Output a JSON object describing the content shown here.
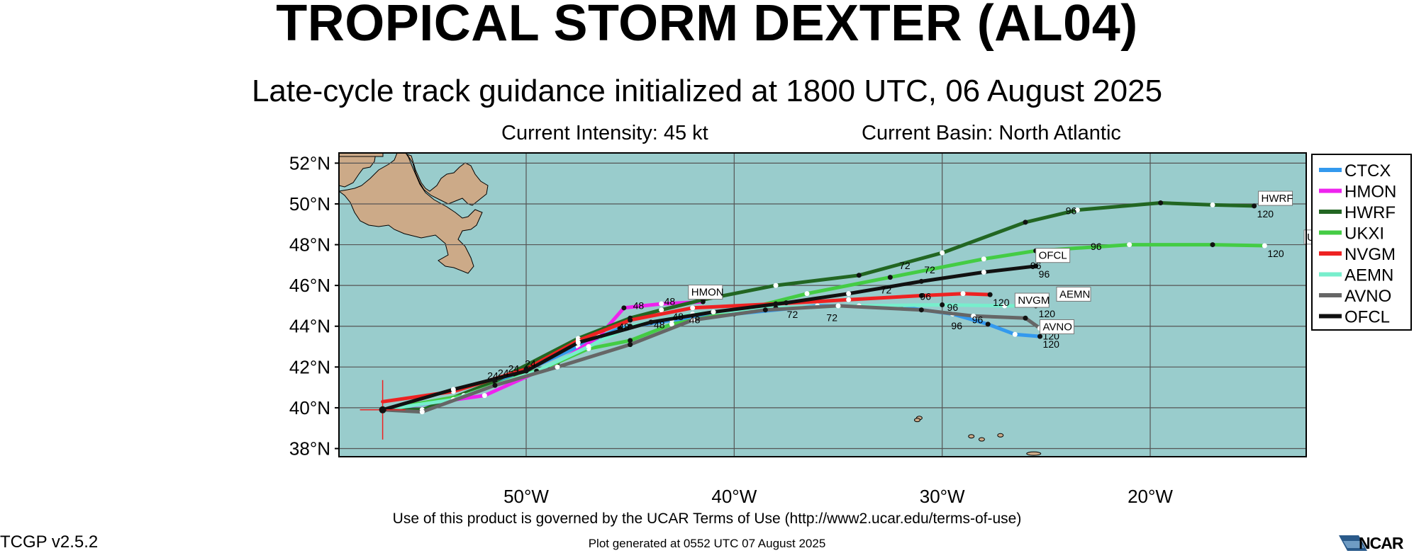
{
  "header": {
    "title": "TROPICAL STORM DEXTER (AL04)",
    "subtitle": "Late-cycle track guidance initialized at 1800 UTC, 06 August 2025",
    "intensity": "Current Intensity: 45 kt",
    "basin": "Current Basin: North Atlantic"
  },
  "footer": {
    "terms": "Use of this product is governed by the UCAR Terms of Use (http://www2.ucar.edu/terms-of-use)",
    "version": "TCGP v2.5.2",
    "generated": "Plot generated at 0552 UTC   07 August 2025",
    "logo_text": "NCAR"
  },
  "colors": {
    "ocean": "#99cccc",
    "land": "#ccaa88",
    "grid": "#555555"
  },
  "map": {
    "lat_labels": [
      "52°N",
      "50°N",
      "48°N",
      "46°N",
      "44°N",
      "42°N",
      "40°N",
      "38°N"
    ],
    "lon_labels": [
      "50°W",
      "40°W",
      "30°W",
      "20°W"
    ],
    "lon_range": [
      -59,
      -12.5
    ],
    "lat_range": [
      37.6,
      52.5
    ],
    "storm_position": {
      "lon": -56.9,
      "lat": 39.9
    },
    "legend": [
      {
        "label": "CTCX",
        "color": "#3399ee"
      },
      {
        "label": "HMON",
        "color": "#ee22ee"
      },
      {
        "label": "HWRF",
        "color": "#226622"
      },
      {
        "label": "UKXI",
        "color": "#44cc44"
      },
      {
        "label": "NVGM",
        "color": "#ee2222"
      },
      {
        "label": "AEMN",
        "color": "#77eecc"
      },
      {
        "label": "AVNO",
        "color": "#666666"
      },
      {
        "label": "OFCL",
        "color": "#111111"
      }
    ],
    "tracks": [
      {
        "model": "CTCX",
        "color": "#3399ee",
        "end_label": "120",
        "points": [
          [
            -56.9,
            39.9
          ],
          [
            -54,
            40.3
          ],
          [
            -50.5,
            41.6
          ],
          [
            -47.5,
            43
          ],
          [
            -45.5,
            43.9
          ],
          [
            -43,
            44.3
          ],
          [
            -40,
            44.6
          ],
          [
            -36,
            45
          ],
          [
            -32,
            44.95
          ],
          [
            -29.5,
            44.6
          ],
          [
            -27.8,
            44.1
          ],
          [
            -26.5,
            43.6
          ],
          [
            -25.3,
            43.5
          ]
        ]
      },
      {
        "model": "HMON",
        "color": "#ee22ee",
        "box_label": "HMON",
        "box_at": [
          -42.2,
          45.5
        ],
        "points": [
          [
            -56.9,
            39.9
          ],
          [
            -52,
            40.6
          ],
          [
            -48.5,
            42.2
          ],
          [
            -46.5,
            43.5
          ],
          [
            -45.3,
            44.9
          ],
          [
            -43.5,
            45.1
          ],
          [
            -41.5,
            45.2
          ]
        ]
      },
      {
        "model": "HWRF",
        "color": "#226622",
        "box_label": "HWRF",
        "box_at": [
          -14.8,
          50.1
        ],
        "end_label": "120",
        "points": [
          [
            -56.9,
            39.9
          ],
          [
            -55,
            39.9
          ],
          [
            -51.5,
            41.3
          ],
          [
            -47.5,
            43.4
          ],
          [
            -45,
            44.4
          ],
          [
            -43.5,
            44.8
          ],
          [
            -41.5,
            45.3
          ],
          [
            -38,
            46
          ],
          [
            -34,
            46.5
          ],
          [
            -30,
            47.6
          ],
          [
            -26,
            49.1
          ],
          [
            -23.5,
            49.7
          ],
          [
            -19.5,
            50.05
          ],
          [
            -17,
            49.95
          ],
          [
            -15,
            49.9
          ]
        ]
      },
      {
        "model": "UKXI",
        "color": "#44cc44",
        "box_label": "UKXI",
        "box_at": [
          -12.6,
          48.2
        ],
        "end_label": "120",
        "points": [
          [
            -56.9,
            39.9
          ],
          [
            -53,
            40.6
          ],
          [
            -49,
            42
          ],
          [
            -47,
            42.9
          ],
          [
            -45,
            43.3
          ],
          [
            -43,
            44.1
          ],
          [
            -40,
            44.7
          ],
          [
            -36.5,
            45.6
          ],
          [
            -32.5,
            46.4
          ],
          [
            -28,
            47.3
          ],
          [
            -25.5,
            47.7
          ],
          [
            -21,
            48
          ],
          [
            -17,
            48
          ],
          [
            -14.5,
            47.95
          ]
        ]
      },
      {
        "model": "NVGM",
        "color": "#ee2222",
        "box_label": "NVGM",
        "box_at": [
          -26.5,
          45.1
        ],
        "end_label": "120",
        "points": [
          [
            -56.9,
            40.3
          ],
          [
            -53.5,
            40.8
          ],
          [
            -50,
            41.9
          ],
          [
            -47.5,
            43.3
          ],
          [
            -45,
            44.3
          ],
          [
            -42,
            44.9
          ],
          [
            -38,
            45.1
          ],
          [
            -34.5,
            45.3
          ],
          [
            -31,
            45.5
          ],
          [
            -29,
            45.6
          ],
          [
            -27.7,
            45.55
          ]
        ]
      },
      {
        "model": "AEMN",
        "color": "#77eecc",
        "box_label": "AEMN",
        "box_at": [
          -24.5,
          45.4
        ],
        "end_label": "120",
        "points": [
          [
            -56.9,
            39.9
          ],
          [
            -53.5,
            40.4
          ],
          [
            -49.5,
            41.8
          ],
          [
            -47,
            43
          ],
          [
            -45,
            44
          ],
          [
            -42,
            44.6
          ],
          [
            -38,
            44.9
          ],
          [
            -34,
            45
          ],
          [
            -30,
            45.05
          ],
          [
            -27,
            45
          ],
          [
            -25.5,
            45
          ]
        ]
      },
      {
        "model": "AVNO",
        "color": "#666666",
        "box_label": "AVNO",
        "box_at": [
          -25.3,
          43.8
        ],
        "end_label": "120",
        "points": [
          [
            -56.9,
            39.9
          ],
          [
            -55,
            39.8
          ],
          [
            -51.5,
            41.1
          ],
          [
            -48.5,
            42
          ],
          [
            -45,
            43.1
          ],
          [
            -42,
            44.3
          ],
          [
            -38.5,
            44.8
          ],
          [
            -35,
            45
          ],
          [
            -31,
            44.8
          ],
          [
            -28.5,
            44.5
          ],
          [
            -26,
            44.4
          ],
          [
            -25.3,
            43.9
          ]
        ]
      },
      {
        "model": "OFCL",
        "color": "#111111",
        "box_label": "OFCL",
        "box_at": [
          -25.5,
          47.3
        ],
        "end_label": "96",
        "points": [
          [
            -56.9,
            39.9
          ],
          [
            -53.5,
            40.9
          ],
          [
            -50,
            41.8
          ],
          [
            -47.5,
            43.2
          ],
          [
            -44,
            44.2
          ],
          [
            -41,
            44.7
          ],
          [
            -37.5,
            45.15
          ],
          [
            -34.5,
            45.6
          ],
          [
            -31,
            46.2
          ],
          [
            -28,
            46.65
          ],
          [
            -25.5,
            46.95
          ]
        ]
      }
    ],
    "hour_labels": [
      {
        "text": "24",
        "lon": -51.6,
        "lat": 41.4
      },
      {
        "text": "24",
        "lon": -50.6,
        "lat": 41.75
      },
      {
        "text": "24",
        "lon": -51.1,
        "lat": 41.55
      },
      {
        "text": "24",
        "lon": -49.8,
        "lat": 42
      },
      {
        "text": "48",
        "lon": -44.6,
        "lat": 44.85
      },
      {
        "text": "48",
        "lon": -43.1,
        "lat": 45.05
      },
      {
        "text": "48",
        "lon": -45.3,
        "lat": 43.8
      },
      {
        "text": "48",
        "lon": -43.6,
        "lat": 43.9
      },
      {
        "text": "48",
        "lon": -42.7,
        "lat": 44.3
      },
      {
        "text": "48",
        "lon": -41.9,
        "lat": 44.15
      },
      {
        "text": "72",
        "lon": -37.2,
        "lat": 44.4
      },
      {
        "text": "72",
        "lon": -35.3,
        "lat": 44.25
      },
      {
        "text": "72",
        "lon": -31.8,
        "lat": 46.8
      },
      {
        "text": "72",
        "lon": -30.6,
        "lat": 46.6
      },
      {
        "text": "72",
        "lon": -32.7,
        "lat": 45.6
      },
      {
        "text": "96",
        "lon": -30.8,
        "lat": 45.3
      },
      {
        "text": "96",
        "lon": -29.5,
        "lat": 44.75
      },
      {
        "text": "96",
        "lon": -29.3,
        "lat": 43.85
      },
      {
        "text": "96",
        "lon": -28.3,
        "lat": 44.15
      },
      {
        "text": "96",
        "lon": -22.6,
        "lat": 47.75
      },
      {
        "text": "96",
        "lon": -23.8,
        "lat": 49.5
      },
      {
        "text": "96",
        "lon": -25.5,
        "lat": 46.8
      }
    ]
  }
}
